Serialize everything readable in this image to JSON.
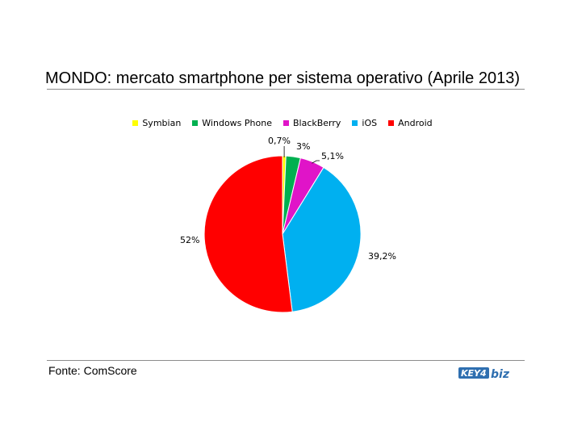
{
  "header": {
    "title": "MONDO: mercato smartphone per sistema operativo (Aprile 2013)"
  },
  "footer": {
    "source": "Fonte: ComScore",
    "logo_text": "KEY4biz"
  },
  "chart_data": {
    "type": "pie",
    "title": "MONDO: mercato smartphone per sistema operativo (Aprile 2013)",
    "legend_position": "top",
    "slices": [
      {
        "name": "Symbian",
        "value": 0.7,
        "label": "0,7%",
        "color": "#ffff00"
      },
      {
        "name": "Windows Phone",
        "value": 3,
        "label": "3%",
        "color": "#00b050"
      },
      {
        "name": "BlackBerry",
        "value": 5.1,
        "label": "5,1%",
        "color": "#e014c8"
      },
      {
        "name": "iOS",
        "value": 39.2,
        "label": "39,2%",
        "color": "#00b0f0"
      },
      {
        "name": "Android",
        "value": 52,
        "label": "52%",
        "color": "#ff0000"
      }
    ]
  }
}
